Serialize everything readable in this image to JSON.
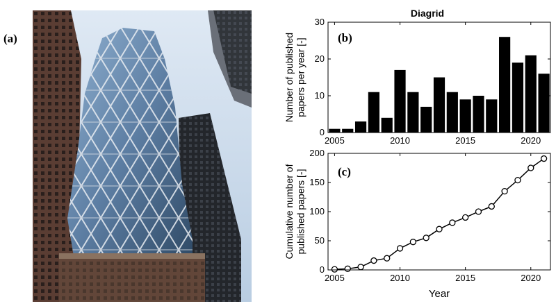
{
  "figure": {
    "label_a": "(a)",
    "photo_alt": "Photograph of a diagrid high-rise tower"
  },
  "colors": {
    "bars": "#000000",
    "line": "#000000",
    "sky": "#c9d9ea"
  },
  "chart_data": [
    {
      "type": "bar",
      "title": "Diagrid",
      "panel_label": "(b)",
      "ylabel": "Number of published papers per year [-]",
      "ylabel_lines": [
        "Number of published",
        "papers per year [-]"
      ],
      "xlabel": "",
      "x": [
        2005,
        2006,
        2007,
        2008,
        2009,
        2010,
        2011,
        2012,
        2013,
        2014,
        2015,
        2016,
        2017,
        2018,
        2019,
        2020,
        2021
      ],
      "values": [
        1,
        1,
        3,
        11,
        4,
        17,
        11,
        7,
        15,
        11,
        9,
        10,
        9,
        26,
        19,
        21,
        16
      ],
      "xlim": [
        2004.5,
        2021.5
      ],
      "ylim": [
        0,
        30
      ],
      "xticks": [
        2005,
        2010,
        2015,
        2020
      ],
      "yticks": [
        0,
        10,
        20,
        30
      ],
      "grid": false
    },
    {
      "type": "line",
      "panel_label": "(c)",
      "ylabel": "Cumulative number of published papers [-]",
      "ylabel_lines": [
        "Cumulative number of",
        "published papers [-]"
      ],
      "xlabel": "Year",
      "x": [
        2005,
        2006,
        2007,
        2008,
        2009,
        2010,
        2011,
        2012,
        2013,
        2014,
        2015,
        2016,
        2017,
        2018,
        2019,
        2020,
        2021
      ],
      "values": [
        1,
        2,
        5,
        16,
        20,
        37,
        48,
        55,
        70,
        81,
        90,
        100,
        109,
        135,
        154,
        175,
        191
      ],
      "xlim": [
        2004.5,
        2021.5
      ],
      "ylim": [
        0,
        200
      ],
      "xticks": [
        2005,
        2010,
        2015,
        2020
      ],
      "yticks": [
        0,
        50,
        100,
        150,
        200
      ],
      "marker": "circle",
      "grid": false
    }
  ]
}
